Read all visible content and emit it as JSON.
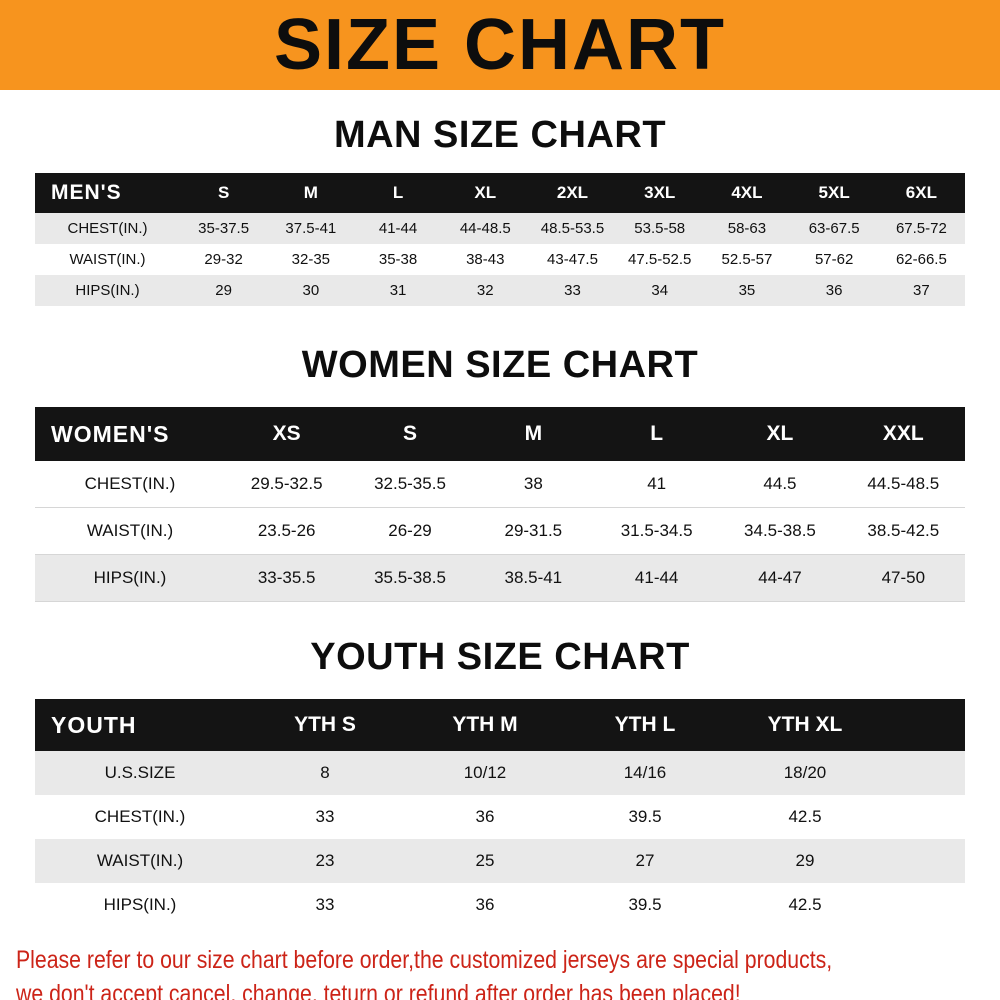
{
  "banner": {
    "title": "SIZE CHART"
  },
  "sections": {
    "men": {
      "title": "MAN SIZE CHART",
      "table": {
        "label": "MEN'S",
        "columns": [
          "S",
          "M",
          "L",
          "XL",
          "2XL",
          "3XL",
          "4XL",
          "5XL",
          "6XL"
        ],
        "rows": [
          {
            "label": "CHEST(IN.)",
            "values": [
              "35-37.5",
              "37.5-41",
              "41-44",
              "44-48.5",
              "48.5-53.5",
              "53.5-58",
              "58-63",
              "63-67.5",
              "67.5-72"
            ]
          },
          {
            "label": "WAIST(IN.)",
            "values": [
              "29-32",
              "32-35",
              "35-38",
              "38-43",
              "43-47.5",
              "47.5-52.5",
              "52.5-57",
              "57-62",
              "62-66.5"
            ]
          },
          {
            "label": "HIPS(IN.)",
            "values": [
              "29",
              "30",
              "31",
              "32",
              "33",
              "34",
              "35",
              "36",
              "37"
            ]
          }
        ]
      }
    },
    "women": {
      "title": "WOMEN SIZE CHART",
      "table": {
        "label": "WOMEN'S",
        "columns": [
          "XS",
          "S",
          "M",
          "L",
          "XL",
          "XXL"
        ],
        "rows": [
          {
            "label": "CHEST(IN.)",
            "values": [
              "29.5-32.5",
              "32.5-35.5",
              "38",
              "41",
              "44.5",
              "44.5-48.5"
            ]
          },
          {
            "label": "WAIST(IN.)",
            "values": [
              "23.5-26",
              "26-29",
              "29-31.5",
              "31.5-34.5",
              "34.5-38.5",
              "38.5-42.5"
            ]
          },
          {
            "label": "HIPS(IN.)",
            "values": [
              "33-35.5",
              "35.5-38.5",
              "38.5-41",
              "41-44",
              "44-47",
              "47-50"
            ]
          }
        ]
      }
    },
    "youth": {
      "title": "YOUTH SIZE CHART",
      "table": {
        "label": "YOUTH",
        "columns": [
          "YTH S",
          "YTH M",
          "YTH L",
          "YTH XL"
        ],
        "rows": [
          {
            "label": "U.S.SIZE",
            "values": [
              "8",
              "10/12",
              "14/16",
              "18/20"
            ]
          },
          {
            "label": "CHEST(IN.)",
            "values": [
              "33",
              "36",
              "39.5",
              "42.5"
            ]
          },
          {
            "label": "WAIST(IN.)",
            "values": [
              "23",
              "25",
              "27",
              "29"
            ]
          },
          {
            "label": "HIPS(IN.)",
            "values": [
              "33",
              "36",
              "39.5",
              "42.5"
            ]
          }
        ]
      }
    }
  },
  "footer": {
    "line1": "Please refer to our size chart before order,the customized jerseys are special products,",
    "line2": "we don't accept cancel, change, teturn or refund after order has been placed!"
  },
  "colors": {
    "banner_orange": "#f7941e",
    "header_black": "#141414",
    "row_gray": "#e9e9e9",
    "footer_red": "#cc2418"
  }
}
